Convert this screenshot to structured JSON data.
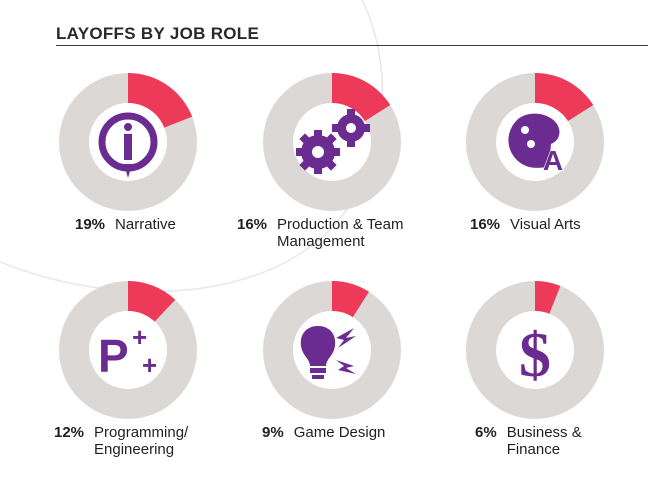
{
  "title": "LAYOFFS BY JOB ROLE",
  "colors": {
    "remaining": "#dcd8d5",
    "share": "#ee3a59",
    "icon": "#6b2c91",
    "inner": "#ffffff"
  },
  "chart_data": {
    "type": "pie",
    "title": "LAYOFFS BY JOB ROLE",
    "items": [
      {
        "label": "Narrative",
        "value": 19,
        "pct_label": "19%",
        "icon": "pencil-icon"
      },
      {
        "label": "Production & Team Management",
        "value": 16,
        "pct_label": "16%",
        "icon": "gears-icon"
      },
      {
        "label": "Visual Arts",
        "value": 16,
        "pct_label": "16%",
        "icon": "palette-icon"
      },
      {
        "label": "Programming/ Engineering",
        "value": 12,
        "pct_label": "12%",
        "icon": "p-plus-icon"
      },
      {
        "label": "Game Design",
        "value": 9,
        "pct_label": "9%",
        "icon": "lightbulb-icon"
      },
      {
        "label": "Business & Finance",
        "value": 6,
        "pct_label": "6%",
        "icon": "dollar-icon"
      }
    ]
  }
}
